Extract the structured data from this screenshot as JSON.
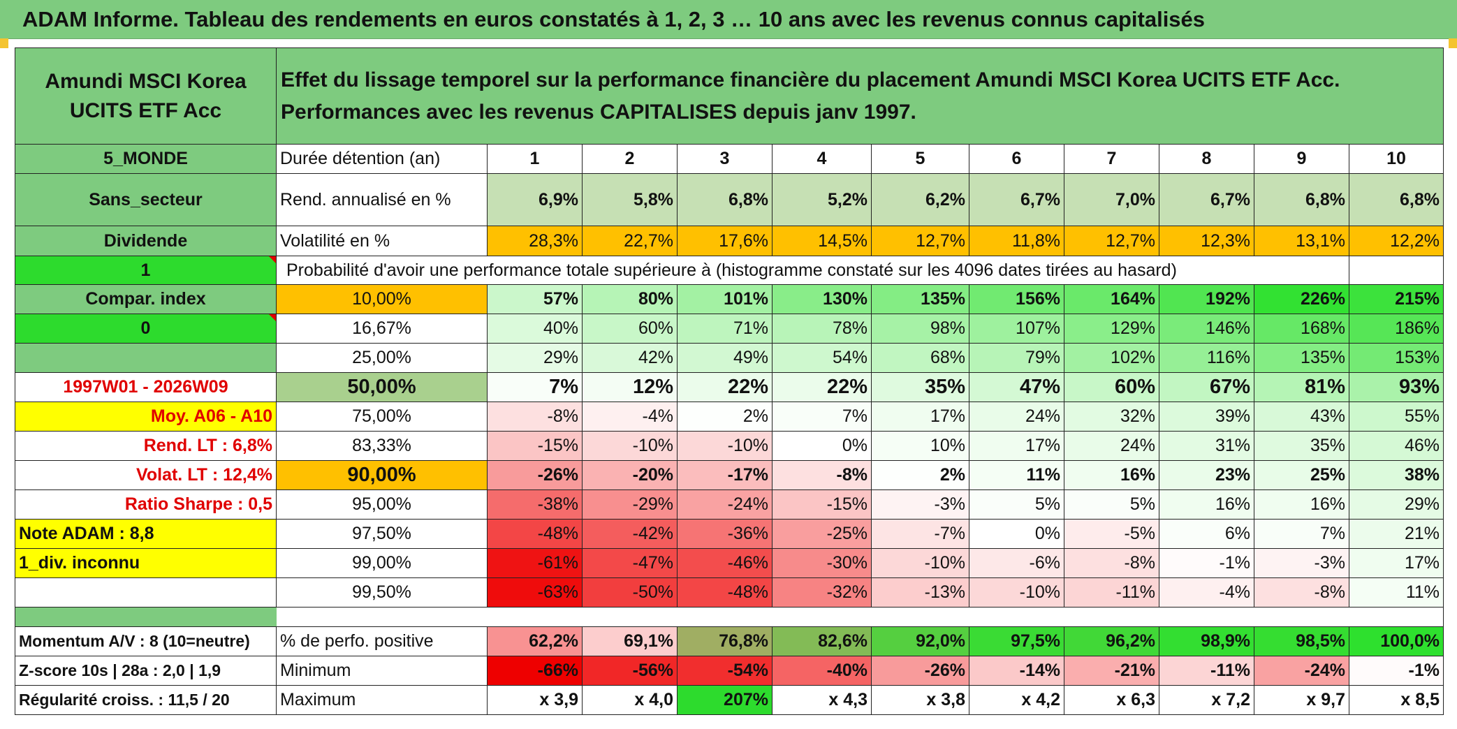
{
  "title": "ADAM Informe. Tableau des rendements en euros constatés à 1, 2, 3 … 10 ans avec les revenus connus capitalisés",
  "fund_name": "Amundi MSCI Korea UCITS ETF Acc",
  "header_text": "Effet du lissage temporel sur la performance financière du placement Amundi MSCI Korea UCITS ETF Acc. Performances avec les revenus CAPITALISES depuis janv 1997.",
  "left": {
    "zone": "5_MONDE",
    "secteur": "Sans_secteur",
    "dividende": "Dividende",
    "flag1": "1",
    "compar": "Compar. index",
    "flag0": "0",
    "blank": "",
    "period": "1997W01 - 2026W09",
    "moy": "Moy. A06 - A10",
    "rend_lt": "Rend. LT :   6,8%",
    "volat_lt": "Volat. LT :   12,4%",
    "sharpe": "Ratio Sharpe :   0,5",
    "note": "Note ADAM : 8,8",
    "div": "1_div. inconnu",
    "momentum": "Momentum A/V : 8 (10=neutre)",
    "zscore": "Z-score 10s | 28a : 2,0 | 1,9",
    "regul": "Régularité croiss. : 11,5 / 20"
  },
  "labels": {
    "duree": "Durée détention (an)",
    "rend": "Rend. annualisé en %",
    "vol": "Volatilité en %",
    "proba": "Probabilité d'avoir une performance totale supérieure à (histogramme constaté sur les 4096 dates tirées au hasard)",
    "perfpos": "% de perfo. positive",
    "min": "Minimum",
    "max": "Maximum"
  },
  "years": [
    "1",
    "2",
    "3",
    "4",
    "5",
    "6",
    "7",
    "8",
    "9",
    "10"
  ],
  "rend": [
    "6,9%",
    "5,8%",
    "6,8%",
    "5,2%",
    "6,2%",
    "6,7%",
    "7,0%",
    "6,7%",
    "6,8%",
    "6,8%"
  ],
  "vol": [
    "28,3%",
    "22,7%",
    "17,6%",
    "14,5%",
    "12,7%",
    "11,8%",
    "12,7%",
    "12,3%",
    "13,1%",
    "12,2%"
  ],
  "prob_rows": [
    {
      "p": "10,00%",
      "vals": [
        "57%",
        "80%",
        "101%",
        "130%",
        "135%",
        "156%",
        "164%",
        "192%",
        "226%",
        "215%"
      ]
    },
    {
      "p": "16,67%",
      "vals": [
        "40%",
        "60%",
        "71%",
        "78%",
        "98%",
        "107%",
        "129%",
        "146%",
        "168%",
        "186%"
      ]
    },
    {
      "p": "25,00%",
      "vals": [
        "29%",
        "42%",
        "49%",
        "54%",
        "68%",
        "79%",
        "102%",
        "116%",
        "135%",
        "153%"
      ]
    },
    {
      "p": "50,00%",
      "vals": [
        "7%",
        "12%",
        "22%",
        "22%",
        "35%",
        "47%",
        "60%",
        "67%",
        "81%",
        "93%"
      ]
    },
    {
      "p": "75,00%",
      "vals": [
        "-8%",
        "-4%",
        "2%",
        "7%",
        "17%",
        "24%",
        "32%",
        "39%",
        "43%",
        "55%"
      ]
    },
    {
      "p": "83,33%",
      "vals": [
        "-15%",
        "-10%",
        "-10%",
        "0%",
        "10%",
        "17%",
        "24%",
        "31%",
        "35%",
        "46%"
      ]
    },
    {
      "p": "90,00%",
      "vals": [
        "-26%",
        "-20%",
        "-17%",
        "-8%",
        "2%",
        "11%",
        "16%",
        "23%",
        "25%",
        "38%"
      ]
    },
    {
      "p": "95,00%",
      "vals": [
        "-38%",
        "-29%",
        "-24%",
        "-15%",
        "-3%",
        "5%",
        "5%",
        "16%",
        "16%",
        "29%"
      ]
    },
    {
      "p": "97,50%",
      "vals": [
        "-48%",
        "-42%",
        "-36%",
        "-25%",
        "-7%",
        "0%",
        "-5%",
        "6%",
        "7%",
        "21%"
      ]
    },
    {
      "p": "99,00%",
      "vals": [
        "-61%",
        "-47%",
        "-46%",
        "-30%",
        "-10%",
        "-6%",
        "-8%",
        "-1%",
        "-3%",
        "17%"
      ]
    },
    {
      "p": "99,50%",
      "vals": [
        "-63%",
        "-50%",
        "-48%",
        "-32%",
        "-13%",
        "-10%",
        "-11%",
        "-4%",
        "-8%",
        "11%"
      ]
    }
  ],
  "perfpos": [
    "62,2%",
    "69,1%",
    "76,8%",
    "82,6%",
    "92,0%",
    "97,5%",
    "96,2%",
    "98,9%",
    "98,5%",
    "100,0%"
  ],
  "min": [
    "-66%",
    "-56%",
    "-54%",
    "-40%",
    "-26%",
    "-14%",
    "-21%",
    "-11%",
    "-24%",
    "-1%"
  ],
  "max": [
    "x 3,9",
    "x 4,0",
    "207%",
    "x 4,3",
    "x 3,8",
    "x 4,2",
    "x 6,3",
    "x 7,2",
    "x 9,7",
    "x 8,5"
  ],
  "colors": {
    "header_green": "#7ecb7f",
    "bright_green": "#2ddb2d",
    "yellow": "#ffff00",
    "orange": "#ffc000",
    "red_text": "#e00000",
    "positive_scale": "#2ee02e",
    "negative_scale": "#ee0000"
  }
}
